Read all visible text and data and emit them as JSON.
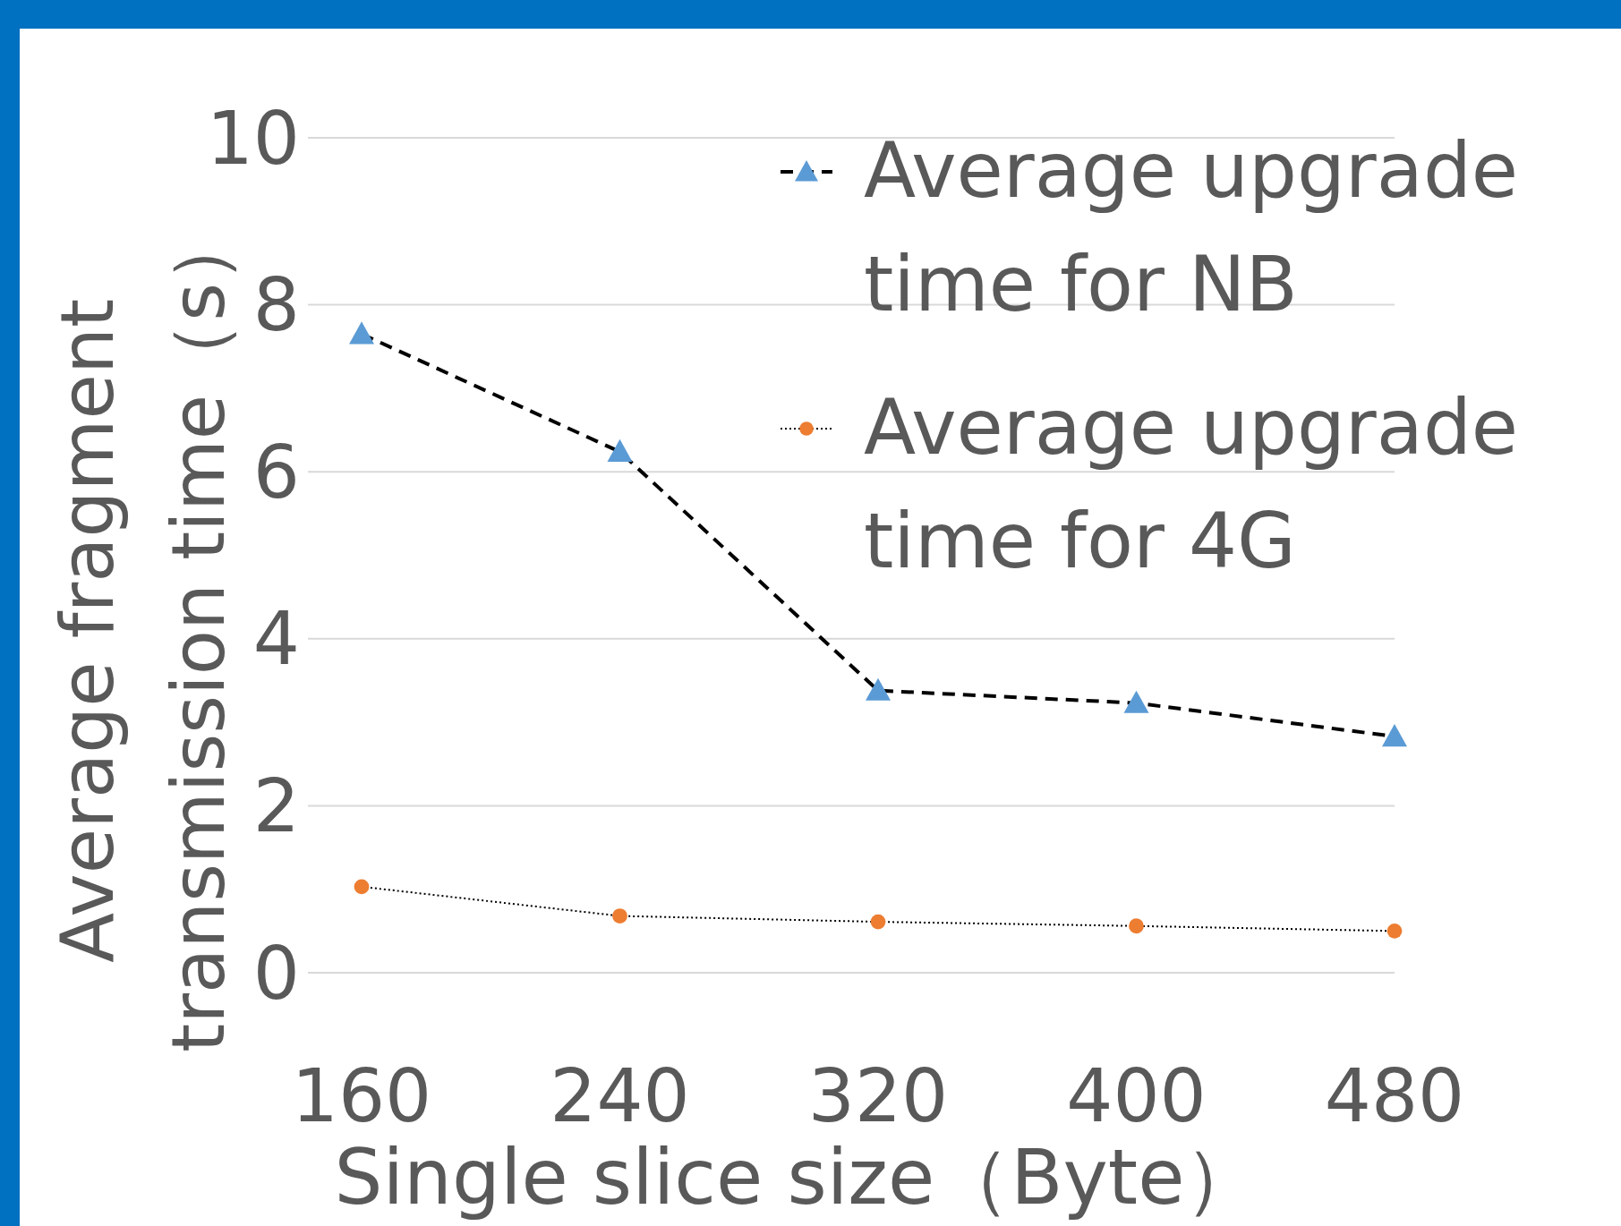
{
  "chart_data": {
    "type": "line",
    "xlabel": "Single slice size（Byte）",
    "ylabel": "Average fragment transmission time（s）",
    "categories": [
      "160",
      "240",
      "320",
      "400",
      "480"
    ],
    "series": [
      {
        "name": "Average upgrade time for NB",
        "color": "#5b9bd5",
        "marker": "triangle",
        "line_style": "dashed",
        "values": [
          7.65,
          6.24,
          3.38,
          3.23,
          2.83
        ]
      },
      {
        "name": "Average upgrade time for 4G",
        "color": "#ed7d31",
        "marker": "circle",
        "line_style": "dotted",
        "values": [
          1.03,
          0.68,
          0.61,
          0.56,
          0.5
        ]
      }
    ],
    "ylim": [
      0,
      10
    ],
    "yticks": [
      0,
      2,
      4,
      6,
      8,
      10
    ],
    "grid": "y",
    "legend": "top right"
  }
}
